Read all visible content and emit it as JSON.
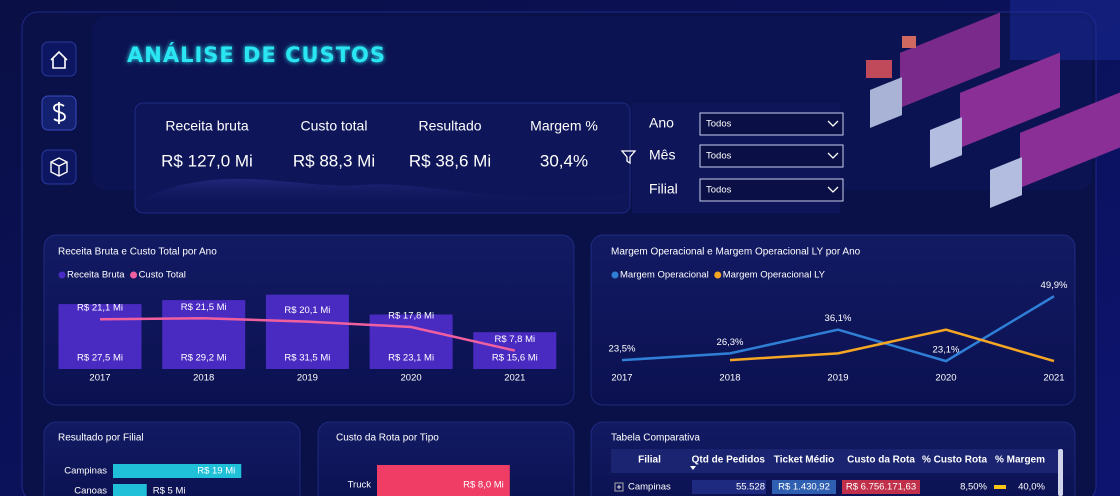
{
  "header": {
    "title": "ANÁLISE DE CUSTOS"
  },
  "kpis": [
    {
      "label": "Receita bruta",
      "value": "R$ 127,0 Mi"
    },
    {
      "label": "Custo total",
      "value": "R$ 88,3 Mi"
    },
    {
      "label": "Resultado",
      "value": "R$ 38,6 Mi"
    },
    {
      "label": "Margem %",
      "value": "30,4%"
    }
  ],
  "filters": [
    {
      "label": "Ano",
      "value": "Todos"
    },
    {
      "label": "Mês",
      "value": "Todos"
    },
    {
      "label": "Filial",
      "value": "Todos"
    }
  ],
  "revenue_chart": {
    "type": "bar",
    "title": "Receita Bruta e Custo Total por Ano",
    "categories": [
      "2017",
      "2018",
      "2019",
      "2020",
      "2021"
    ],
    "series": [
      {
        "name": "Receita Bruta",
        "color": "#4a2bc2",
        "values": [
          27.5,
          29.2,
          31.5,
          23.1,
          15.6
        ],
        "value_labels": [
          "R$ 27,5 Mi",
          "R$ 29,2 Mi",
          "R$ 31,5 Mi",
          "R$ 23,1 Mi",
          "R$ 15,6 Mi"
        ]
      },
      {
        "name": "Custo Total",
        "type": "line",
        "color": "#f0609e",
        "values": [
          21.1,
          21.5,
          20.1,
          17.8,
          7.8
        ],
        "value_labels": [
          "R$ 21,1 Mi",
          "R$ 21,5 Mi",
          "R$ 20,1 Mi",
          "R$ 17,8 Mi",
          "R$ 7,8 Mi"
        ]
      }
    ]
  },
  "margin_chart": {
    "type": "line",
    "title": "Margem Operacional e Margem Operacional LY por Ano",
    "categories": [
      "2017",
      "2018",
      "2019",
      "2020",
      "2021"
    ],
    "series": [
      {
        "name": "Margem Operacional",
        "color": "#2f7fd6",
        "values": [
          23.5,
          26.3,
          36.1,
          23.1,
          49.9
        ],
        "value_labels": [
          "23,5%",
          "26,3%",
          "36,1%",
          "23,1%",
          "49,9%"
        ]
      },
      {
        "name": "Margem Operacional LY",
        "color": "#f5a623",
        "values": [
          null,
          23.5,
          26.3,
          36.1,
          23.1
        ]
      }
    ]
  },
  "branch_chart": {
    "type": "bar",
    "title": "Resultado por Filial",
    "categories": [
      "Campinas",
      "Canoas"
    ],
    "values": [
      19,
      5
    ],
    "value_labels": [
      "R$ 19 Mi",
      "R$ 5 Mi"
    ],
    "color": "#1fc0d8"
  },
  "route_chart": {
    "type": "bar",
    "title": "Custo da Rota por Tipo",
    "categories": [
      "Truck"
    ],
    "values": [
      8.0
    ],
    "value_labels": [
      "R$ 8,0 Mi"
    ],
    "color": "#ef3d66"
  },
  "table": {
    "title": "Tabela Comparativa",
    "columns": [
      "Filial",
      "Qtd de Pedidos",
      "Ticket Médio",
      "Custo da Rota",
      "% Custo Rota",
      "% Margem"
    ],
    "rows": [
      [
        "Campinas",
        "55.528",
        "R$ 1.430,92",
        "R$ 6.756.171,63",
        "8,50%",
        "40,0%"
      ]
    ]
  }
}
